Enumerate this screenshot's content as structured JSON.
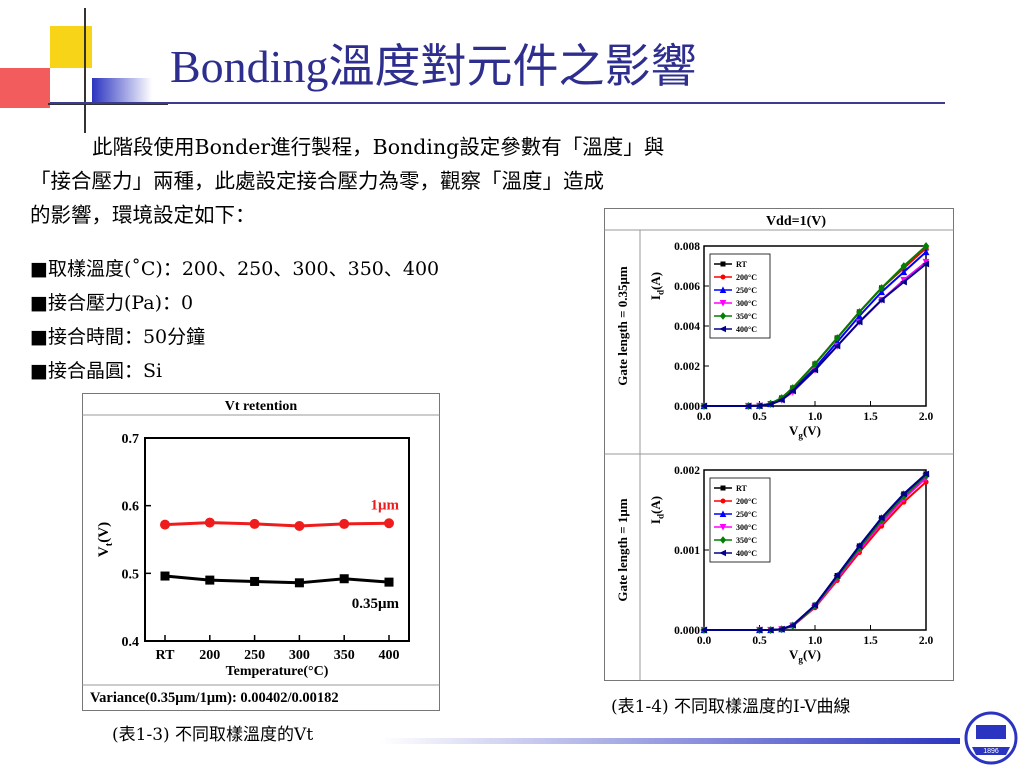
{
  "slide": {
    "title": "Bonding溫度對元件之影響",
    "intro_lines": [
      "此階段使用Bonder進行製程，Bonding設定參數有「溫度」與",
      "「接合壓力」兩種，此處設定接合壓力為零，觀察「溫度」造成",
      "的影響，環境設定如下："
    ],
    "params": [
      "■取樣溫度(˚C)：200、250、300、350、400",
      "■接合壓力(Pa)：0",
      "■接合時間：50分鐘",
      "■接合晶圓：Si"
    ]
  },
  "colors": {
    "title": "#2e2e8f",
    "accent_blue": "#2b34c0",
    "accent_yellow": "#f7d417",
    "accent_red": "#f25c5c"
  },
  "logo": {
    "icon": "university-logo-icon",
    "text": "1896"
  },
  "vt_chart": {
    "header": "Vt retention",
    "footer": "Variance(0.35μm/1μm): 0.00402/0.00182",
    "caption": "(表1-3) 不同取樣溫度的Vt"
  },
  "iv_chart": {
    "header": "Vdd=1(V)",
    "caption": "(表1-4) 不同取樣溫度的I-V曲線"
  },
  "chart_data": [
    {
      "type": "line",
      "title": "Vt retention",
      "xlabel": "Temperature(°C)",
      "ylabel": "Vt(V)",
      "categories": [
        "RT",
        "200",
        "250",
        "300",
        "350",
        "400"
      ],
      "ylim": [
        0.4,
        0.7
      ],
      "yticks": [
        "0.4",
        "0.5",
        "0.6",
        "0.7"
      ],
      "series": [
        {
          "name": "1μm",
          "color": "#ee1c1c",
          "values": [
            0.572,
            0.575,
            0.573,
            0.57,
            0.573,
            0.574
          ]
        },
        {
          "name": "0.35μm",
          "color": "#000000",
          "values": [
            0.496,
            0.49,
            0.488,
            0.486,
            0.492,
            0.487
          ]
        }
      ],
      "footer": "Variance(0.35μm/1μm): 0.00402/0.00182"
    },
    {
      "type": "line",
      "title": "Gate length = 0.35μm",
      "xlabel": "Vg(V)",
      "ylabel": "Id(A)",
      "xlim": [
        0.0,
        2.0
      ],
      "xticks": [
        "0.0",
        "0.5",
        "1.0",
        "1.5",
        "2.0"
      ],
      "ylim": [
        0.0,
        0.008
      ],
      "yticks": [
        "0.000",
        "0.002",
        "0.004",
        "0.006",
        "0.008"
      ],
      "x": [
        0.0,
        0.4,
        0.5,
        0.6,
        0.7,
        0.8,
        1.0,
        1.2,
        1.4,
        1.6,
        1.8,
        2.0
      ],
      "series": [
        {
          "name": "RT",
          "color": "#000000",
          "marker": "square",
          "values": [
            0,
            0,
            1e-05,
            0.00012,
            0.0004,
            0.0009,
            0.0021,
            0.0034,
            0.0047,
            0.0059,
            0.0069,
            0.0079
          ]
        },
        {
          "name": "200°C",
          "color": "#ff0000",
          "marker": "circle",
          "values": [
            0,
            0,
            1e-05,
            0.00012,
            0.0004,
            0.0009,
            0.0021,
            0.0034,
            0.0047,
            0.0059,
            0.0069,
            0.0079
          ]
        },
        {
          "name": "250°C",
          "color": "#0000ff",
          "marker": "triangle-up",
          "values": [
            0,
            0,
            1e-05,
            0.0001,
            0.00035,
            0.0008,
            0.0019,
            0.0032,
            0.0045,
            0.0057,
            0.0067,
            0.0077
          ]
        },
        {
          "name": "300°C",
          "color": "#ff00ff",
          "marker": "triangle-down",
          "values": [
            0,
            0,
            1e-05,
            8e-05,
            0.0003,
            0.0007,
            0.0018,
            0.003,
            0.0042,
            0.0053,
            0.0063,
            0.0072
          ]
        },
        {
          "name": "350°C",
          "color": "#008000",
          "marker": "diamond",
          "values": [
            0,
            0,
            1e-05,
            0.00012,
            0.0004,
            0.0009,
            0.0021,
            0.0034,
            0.0047,
            0.0059,
            0.007,
            0.008
          ]
        },
        {
          "name": "400°C",
          "color": "#00008b",
          "marker": "triangle-left",
          "values": [
            0,
            0,
            1e-05,
            8e-05,
            0.0003,
            0.00075,
            0.0018,
            0.003,
            0.0042,
            0.0053,
            0.0062,
            0.0071
          ]
        }
      ],
      "legend": "top-left"
    },
    {
      "type": "line",
      "title": "Gate length = 1μm",
      "xlabel": "Vg(V)",
      "ylabel": "Id(A)",
      "xlim": [
        0.0,
        2.0
      ],
      "xticks": [
        "0.0",
        "0.5",
        "1.0",
        "1.5",
        "2.0"
      ],
      "ylim": [
        0.0,
        0.002
      ],
      "yticks": [
        "0.000",
        "0.001",
        "0.002"
      ],
      "x": [
        0.0,
        0.5,
        0.6,
        0.7,
        0.8,
        1.0,
        1.2,
        1.4,
        1.6,
        1.8,
        2.0
      ],
      "series": [
        {
          "name": "RT",
          "color": "#000000",
          "marker": "square",
          "values": [
            0,
            0,
            0,
            1e-05,
            6e-05,
            0.00031,
            0.00068,
            0.00105,
            0.0014,
            0.0017,
            0.00195
          ]
        },
        {
          "name": "200°C",
          "color": "#ff0000",
          "marker": "circle",
          "values": [
            0,
            0,
            0,
            1e-05,
            5e-05,
            0.00028,
            0.00062,
            0.00097,
            0.0013,
            0.0016,
            0.00185
          ]
        },
        {
          "name": "250°C",
          "color": "#0000ff",
          "marker": "triangle-up",
          "values": [
            0,
            0,
            0,
            1e-05,
            6e-05,
            0.00031,
            0.00068,
            0.00105,
            0.0014,
            0.0017,
            0.00195
          ]
        },
        {
          "name": "300°C",
          "color": "#ff00ff",
          "marker": "triangle-down",
          "values": [
            0,
            0,
            0,
            1e-05,
            5e-05,
            0.00029,
            0.00064,
            0.001,
            0.00134,
            0.00164,
            0.0019
          ]
        },
        {
          "name": "350°C",
          "color": "#008000",
          "marker": "diamond",
          "values": [
            0,
            0,
            0,
            1e-05,
            5e-05,
            0.0003,
            0.00066,
            0.00102,
            0.00137,
            0.00167,
            0.00193
          ]
        },
        {
          "name": "400°C",
          "color": "#00008b",
          "marker": "triangle-left",
          "values": [
            0,
            0,
            0,
            1e-05,
            6e-05,
            0.00031,
            0.00068,
            0.00105,
            0.0014,
            0.0017,
            0.00195
          ]
        }
      ],
      "legend": "top-left"
    }
  ]
}
